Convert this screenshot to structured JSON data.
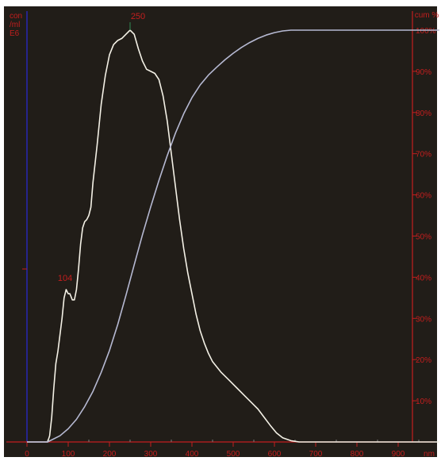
{
  "colors": {
    "background": "#211d18",
    "frame": "#ffffff",
    "axis_red": "#c41e1e",
    "axis_blue": "#2a2ad8",
    "distribution_line": "#f4f1e6",
    "cumulative_line": "#b6b9d2",
    "peak_marker": "#2e8a52"
  },
  "chart_data": {
    "type": "line",
    "title": "",
    "xlabel": "nm",
    "ylabel_left_lines": [
      "con",
      "/ml",
      "E6"
    ],
    "ylabel_right": "cum %",
    "xlim": [
      0,
      1000
    ],
    "ylim_left": [
      0,
      1
    ],
    "ylim_right": [
      0,
      100
    ],
    "x_ticks": [
      0,
      100,
      200,
      300,
      400,
      500,
      600,
      700,
      800,
      900
    ],
    "x_tick_labels": [
      "0",
      "100",
      "200",
      "300",
      "400",
      "500",
      "600",
      "700",
      "800",
      "900"
    ],
    "right_ticks": [
      10,
      20,
      30,
      40,
      50,
      60,
      70,
      80,
      90,
      100
    ],
    "right_tick_labels": [
      "10%",
      "20%",
      "30%",
      "40%",
      "50%",
      "60%",
      "70%",
      "80%",
      "90%",
      "100%"
    ],
    "annotations": [
      {
        "text": "250",
        "x": 250,
        "y": 1.0
      },
      {
        "text": "104",
        "x": 104,
        "y": 0.36
      }
    ],
    "series": [
      {
        "role": "distribution",
        "axis": "left",
        "points": [
          [
            0,
            0
          ],
          [
            50,
            0
          ],
          [
            55,
            0.015
          ],
          [
            60,
            0.06
          ],
          [
            65,
            0.13
          ],
          [
            70,
            0.19
          ],
          [
            75,
            0.22
          ],
          [
            80,
            0.26
          ],
          [
            85,
            0.3
          ],
          [
            90,
            0.35
          ],
          [
            95,
            0.37
          ],
          [
            100,
            0.36
          ],
          [
            104,
            0.36
          ],
          [
            110,
            0.345
          ],
          [
            115,
            0.345
          ],
          [
            120,
            0.37
          ],
          [
            125,
            0.42
          ],
          [
            130,
            0.48
          ],
          [
            135,
            0.52
          ],
          [
            140,
            0.535
          ],
          [
            145,
            0.54
          ],
          [
            150,
            0.55
          ],
          [
            155,
            0.57
          ],
          [
            160,
            0.63
          ],
          [
            170,
            0.72
          ],
          [
            180,
            0.82
          ],
          [
            190,
            0.89
          ],
          [
            200,
            0.94
          ],
          [
            210,
            0.965
          ],
          [
            220,
            0.975
          ],
          [
            230,
            0.98
          ],
          [
            240,
            0.99
          ],
          [
            250,
            1.0
          ],
          [
            260,
            0.99
          ],
          [
            270,
            0.955
          ],
          [
            280,
            0.925
          ],
          [
            290,
            0.905
          ],
          [
            300,
            0.9
          ],
          [
            310,
            0.895
          ],
          [
            320,
            0.88
          ],
          [
            330,
            0.84
          ],
          [
            340,
            0.78
          ],
          [
            350,
            0.7
          ],
          [
            360,
            0.62
          ],
          [
            370,
            0.54
          ],
          [
            380,
            0.47
          ],
          [
            390,
            0.41
          ],
          [
            400,
            0.36
          ],
          [
            410,
            0.31
          ],
          [
            420,
            0.27
          ],
          [
            430,
            0.24
          ],
          [
            440,
            0.215
          ],
          [
            450,
            0.195
          ],
          [
            470,
            0.17
          ],
          [
            490,
            0.15
          ],
          [
            510,
            0.13
          ],
          [
            530,
            0.11
          ],
          [
            545,
            0.095
          ],
          [
            560,
            0.08
          ],
          [
            575,
            0.06
          ],
          [
            590,
            0.04
          ],
          [
            605,
            0.022
          ],
          [
            620,
            0.01
          ],
          [
            640,
            0.003
          ],
          [
            660,
            0.0
          ],
          [
            1000,
            0.0
          ]
        ]
      },
      {
        "role": "cumulative",
        "axis": "right",
        "points": [
          [
            0,
            0
          ],
          [
            50,
            0
          ],
          [
            60,
            0.5
          ],
          [
            80,
            1.5
          ],
          [
            100,
            3.2
          ],
          [
            120,
            5.5
          ],
          [
            140,
            8.6
          ],
          [
            160,
            12.3
          ],
          [
            180,
            16.9
          ],
          [
            200,
            22.2
          ],
          [
            220,
            28.5
          ],
          [
            240,
            35.6
          ],
          [
            260,
            43.0
          ],
          [
            280,
            50.3
          ],
          [
            300,
            57.1
          ],
          [
            320,
            63.5
          ],
          [
            340,
            69.5
          ],
          [
            360,
            75.0
          ],
          [
            380,
            79.7
          ],
          [
            400,
            83.6
          ],
          [
            420,
            86.7
          ],
          [
            440,
            89.1
          ],
          [
            460,
            91.0
          ],
          [
            480,
            92.8
          ],
          [
            500,
            94.4
          ],
          [
            520,
            95.8
          ],
          [
            540,
            97.0
          ],
          [
            560,
            98.0
          ],
          [
            580,
            98.8
          ],
          [
            600,
            99.4
          ],
          [
            620,
            99.8
          ],
          [
            640,
            100
          ],
          [
            1000,
            100
          ]
        ]
      }
    ]
  }
}
